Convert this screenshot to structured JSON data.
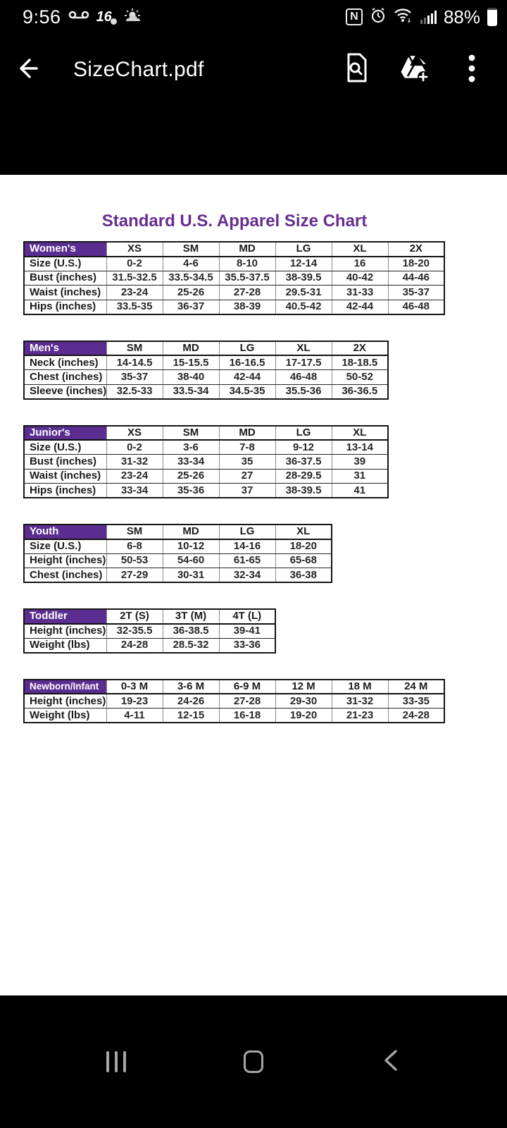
{
  "status_bar": {
    "time": "9:56",
    "battery_percent": "88%",
    "station_logo_text": "16"
  },
  "app_bar": {
    "title": "SizeChart.pdf"
  },
  "document": {
    "title": "Standard U.S. Apparel Size Chart",
    "tables": [
      {
        "name": "Women's",
        "columns": [
          "XS",
          "SM",
          "MD",
          "LG",
          "XL",
          "2X"
        ],
        "rows": [
          {
            "label": "Size (U.S.)",
            "values": [
              "0-2",
              "4-6",
              "8-10",
              "12-14",
              "16",
              "18-20"
            ]
          },
          {
            "label": "Bust (inches)",
            "values": [
              "31.5-32.5",
              "33.5-34.5",
              "35.5-37.5",
              "38-39.5",
              "40-42",
              "44-46"
            ]
          },
          {
            "label": "Waist (inches)",
            "values": [
              "23-24",
              "25-26",
              "27-28",
              "29.5-31",
              "31-33",
              "35-37"
            ]
          },
          {
            "label": "Hips (inches)",
            "values": [
              "33.5-35",
              "36-37",
              "38-39",
              "40.5-42",
              "42-44",
              "46-48"
            ]
          }
        ]
      },
      {
        "name": "Men's",
        "columns": [
          "SM",
          "MD",
          "LG",
          "XL",
          "2X"
        ],
        "rows": [
          {
            "label": "Neck (inches)",
            "values": [
              "14-14.5",
              "15-15.5",
              "16-16.5",
              "17-17.5",
              "18-18.5"
            ]
          },
          {
            "label": "Chest (inches)",
            "values": [
              "35-37",
              "38-40",
              "42-44",
              "46-48",
              "50-52"
            ]
          },
          {
            "label": "Sleeve (inches)",
            "values": [
              "32.5-33",
              "33.5-34",
              "34.5-35",
              "35.5-36",
              "36-36.5"
            ]
          }
        ]
      },
      {
        "name": "Junior's",
        "columns": [
          "XS",
          "SM",
          "MD",
          "LG",
          "XL"
        ],
        "rows": [
          {
            "label": "Size (U.S.)",
            "values": [
              "0-2",
              "3-6",
              "7-8",
              "9-12",
              "13-14"
            ]
          },
          {
            "label": "Bust (inches)",
            "values": [
              "31-32",
              "33-34",
              "35",
              "36-37.5",
              "39"
            ]
          },
          {
            "label": "Waist (inches)",
            "values": [
              "23-24",
              "25-26",
              "27",
              "28-29.5",
              "31"
            ]
          },
          {
            "label": "Hips (inches)",
            "values": [
              "33-34",
              "35-36",
              "37",
              "38-39.5",
              "41"
            ]
          }
        ]
      },
      {
        "name": "Youth",
        "columns": [
          "SM",
          "MD",
          "LG",
          "XL"
        ],
        "rows": [
          {
            "label": "Size (U.S.)",
            "values": [
              "6-8",
              "10-12",
              "14-16",
              "18-20"
            ]
          },
          {
            "label": "Height (inches)",
            "values": [
              "50-53",
              "54-60",
              "61-65",
              "65-68"
            ]
          },
          {
            "label": "Chest (inches)",
            "values": [
              "27-29",
              "30-31",
              "32-34",
              "36-38"
            ]
          }
        ]
      },
      {
        "name": "Toddler",
        "columns": [
          "2T (S)",
          "3T (M)",
          "4T (L)"
        ],
        "rows": [
          {
            "label": "Height (inches)",
            "values": [
              "32-35.5",
              "36-38.5",
              "39-41"
            ]
          },
          {
            "label": "Weight (lbs)",
            "values": [
              "24-28",
              "28.5-32",
              "33-36"
            ]
          }
        ]
      },
      {
        "name": "Newborn/Infant",
        "columns": [
          "0-3 M",
          "3-6 M",
          "6-9 M",
          "12 M",
          "18 M",
          "24 M"
        ],
        "rows": [
          {
            "label": "Height (inches)",
            "values": [
              "19-23",
              "24-26",
              "27-28",
              "29-30",
              "31-32",
              "33-35"
            ]
          },
          {
            "label": "Weight (lbs)",
            "values": [
              "4-11",
              "12-15",
              "16-18",
              "19-20",
              "21-23",
              "24-28"
            ]
          }
        ]
      }
    ]
  },
  "colors": {
    "table_header_purple": "#5c2d91",
    "doc_title_purple": "#652d90",
    "chrome_background": "#000000",
    "page_background": "#ffffff"
  }
}
